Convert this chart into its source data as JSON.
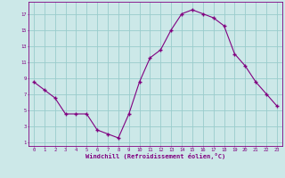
{
  "x": [
    0,
    1,
    2,
    3,
    4,
    5,
    6,
    7,
    8,
    9,
    10,
    11,
    12,
    13,
    14,
    15,
    16,
    17,
    18,
    19,
    20,
    21,
    22,
    23
  ],
  "y": [
    8.5,
    7.5,
    6.5,
    4.5,
    4.5,
    4.5,
    2.5,
    2.0,
    1.5,
    4.5,
    8.5,
    11.5,
    12.5,
    15.0,
    17.0,
    17.5,
    17.0,
    16.5,
    15.5,
    12.0,
    10.5,
    8.5,
    7.0,
    5.5
  ],
  "line_color": "#800080",
  "marker": "+",
  "marker_size": 3,
  "bg_color": "#cce8e8",
  "grid_color": "#99cccc",
  "xlabel": "Windchill (Refroidissement éolien,°C)",
  "xlabel_color": "#800080",
  "tick_color": "#800080",
  "yticks": [
    1,
    3,
    5,
    7,
    9,
    11,
    13,
    15,
    17
  ],
  "xticks": [
    0,
    1,
    2,
    3,
    4,
    5,
    6,
    7,
    8,
    9,
    10,
    11,
    12,
    13,
    14,
    15,
    16,
    17,
    18,
    19,
    20,
    21,
    22,
    23
  ],
  "ylim": [
    0.5,
    18.5
  ],
  "xlim": [
    -0.5,
    23.5
  ]
}
